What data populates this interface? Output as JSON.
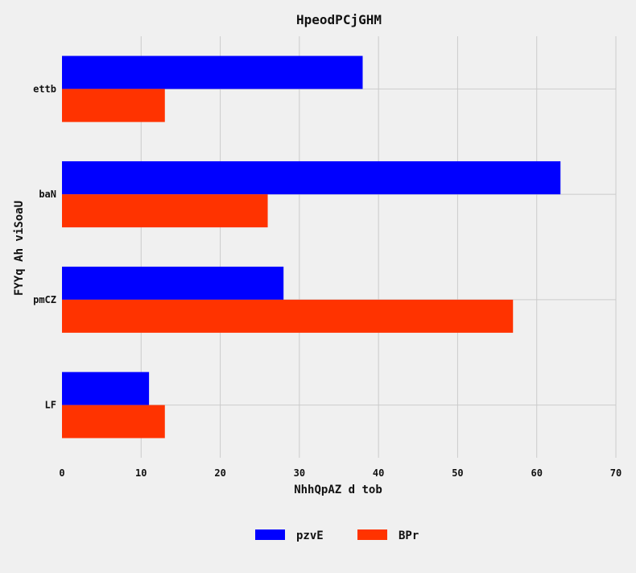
{
  "chart_data": {
    "type": "bar",
    "orientation": "horizontal",
    "title": "HpeodPCjGHM",
    "xlabel": "NhhQpAZ d tob",
    "ylabel": "FYYq Ah viSoaU",
    "categories": [
      "ettb",
      "baN",
      "pmCZ",
      "LF"
    ],
    "series": [
      {
        "name": "pzvE",
        "color": "#0000ff",
        "values": [
          38,
          63,
          28,
          11
        ]
      },
      {
        "name": "BPr",
        "color": "#ff3300",
        "values": [
          13,
          26,
          57,
          13
        ]
      }
    ],
    "xlim": [
      0,
      70
    ],
    "xticks": [
      0,
      10,
      20,
      30,
      40,
      50,
      60,
      70
    ],
    "grid": true,
    "legend_position": "bottom-center",
    "background": "#f0f0f0"
  }
}
